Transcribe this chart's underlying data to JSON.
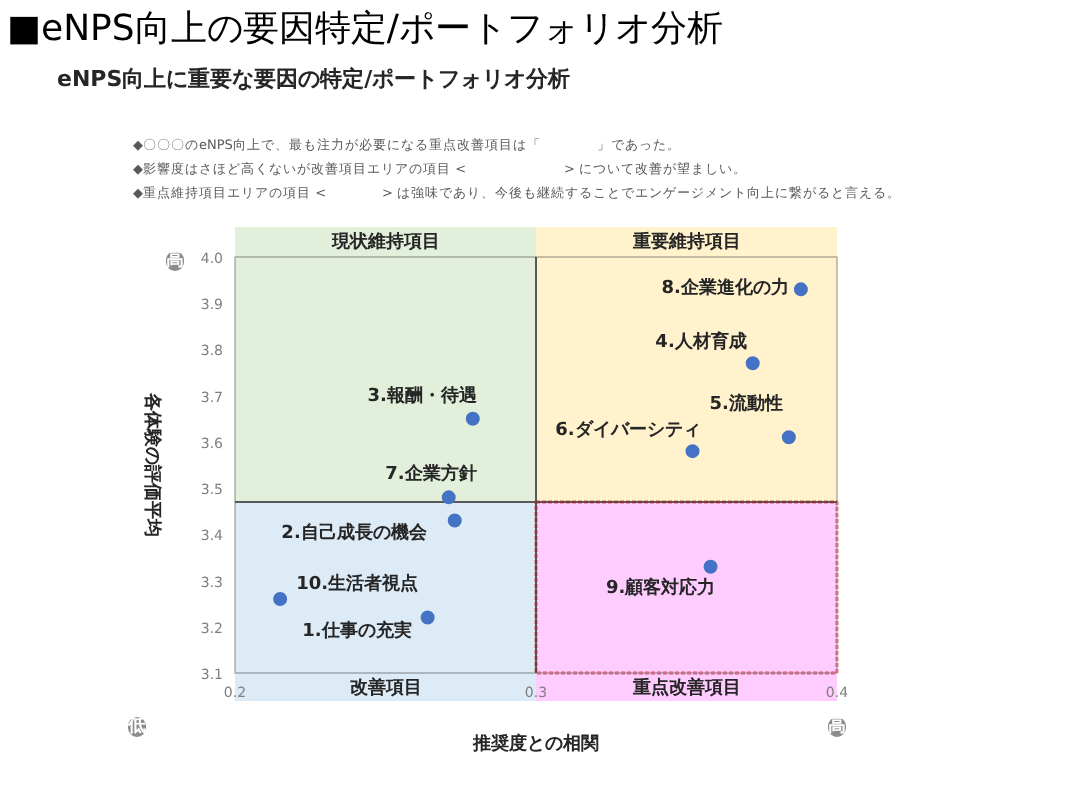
{
  "chart_data": {
    "type": "scatter",
    "title": "■eNPS向上の要因特定/ポートフォリオ分析",
    "subtitle": "eNPS向上に重要な要因の特定/ポートフォリオ分析",
    "xlabel": "推奨度との相関",
    "ylabel": "各体験の評価平均",
    "x": [
      0.264,
      0.273,
      0.279,
      0.372,
      0.384,
      0.352,
      0.271,
      0.388,
      0.358,
      0.215
    ],
    "series": [
      {
        "color": "#4472c4",
        "values": [
          3.22,
          3.43,
          3.65,
          3.77,
          3.61,
          3.58,
          3.48,
          3.93,
          3.33,
          3.26
        ]
      }
    ],
    "marker": "circle",
    "xlim": [
      0.2,
      0.4
    ],
    "xticks": [
      0.2,
      0.3,
      0.4
    ],
    "ylim": [
      3.1,
      4.0
    ],
    "yticks": [
      3.1,
      3.2,
      3.3,
      3.4,
      3.5,
      3.6,
      3.7,
      3.8,
      3.9,
      {
        "value": 4.0,
        "label": "4.0"
      }
    ],
    "ref_lines": [
      {
        "axis": "x",
        "value": 0.3,
        "color": "#595959"
      },
      {
        "axis": "y",
        "value": 3.47,
        "color": "#595959"
      }
    ],
    "bands": [
      {
        "axis": "x",
        "from": 0.2,
        "to": 0.3,
        "label": "現状維持項目",
        "color": "#e2efda"
      },
      {
        "axis": "x",
        "from": 0.3,
        "to": 0.4,
        "label": "重要維持項目",
        "color": "#fff2cc"
      },
      {
        "axis": "x",
        "from": 0.2,
        "to": 0.3,
        "label": "改善項目",
        "color": "#ddebf7"
      },
      {
        "axis": "x",
        "from": 0.3,
        "to": 0.4,
        "label": "重点改善項目",
        "color": "#ffccff"
      }
    ],
    "annotations": [
      {
        "text": "1.仕事の充実",
        "x": 0.264,
        "y": 3.22
      },
      {
        "text": "2.自己成長の機会",
        "x": 0.273,
        "y": 3.43
      },
      {
        "text": "3.報酬・待遇",
        "x": 0.279,
        "y": 3.65
      },
      {
        "text": "4.人材育成",
        "x": 0.372,
        "y": 3.77
      },
      {
        "text": "5.流動性",
        "x": 0.384,
        "y": 3.61
      },
      {
        "text": "6.ダイバーシティ",
        "x": 0.352,
        "y": 3.58
      },
      {
        "text": "7.企業方針",
        "x": 0.271,
        "y": 3.48
      },
      {
        "text": "8.企業進化の力",
        "x": 0.388,
        "y": 3.93
      },
      {
        "text": "9.顧客対応力",
        "x": 0.358,
        "y": 3.33
      },
      {
        "text": "10.生活者視点",
        "x": 0.215,
        "y": 3.26
      },
      "◆〇〇〇のeNPS向上で、最も注力が必要になる重点改善項目は「　　　　」であった。",
      "◆影響度はさほど高くないが改善項目エリアの項目 <　　　　　　　> について改善が望ましい。",
      "◆重点維持項目エリアの項目 <　　　　> は強味であり、今後も継続することでエンゲージメント向上に繋がると言える。",
      "高",
      "低",
      "高"
    ]
  }
}
